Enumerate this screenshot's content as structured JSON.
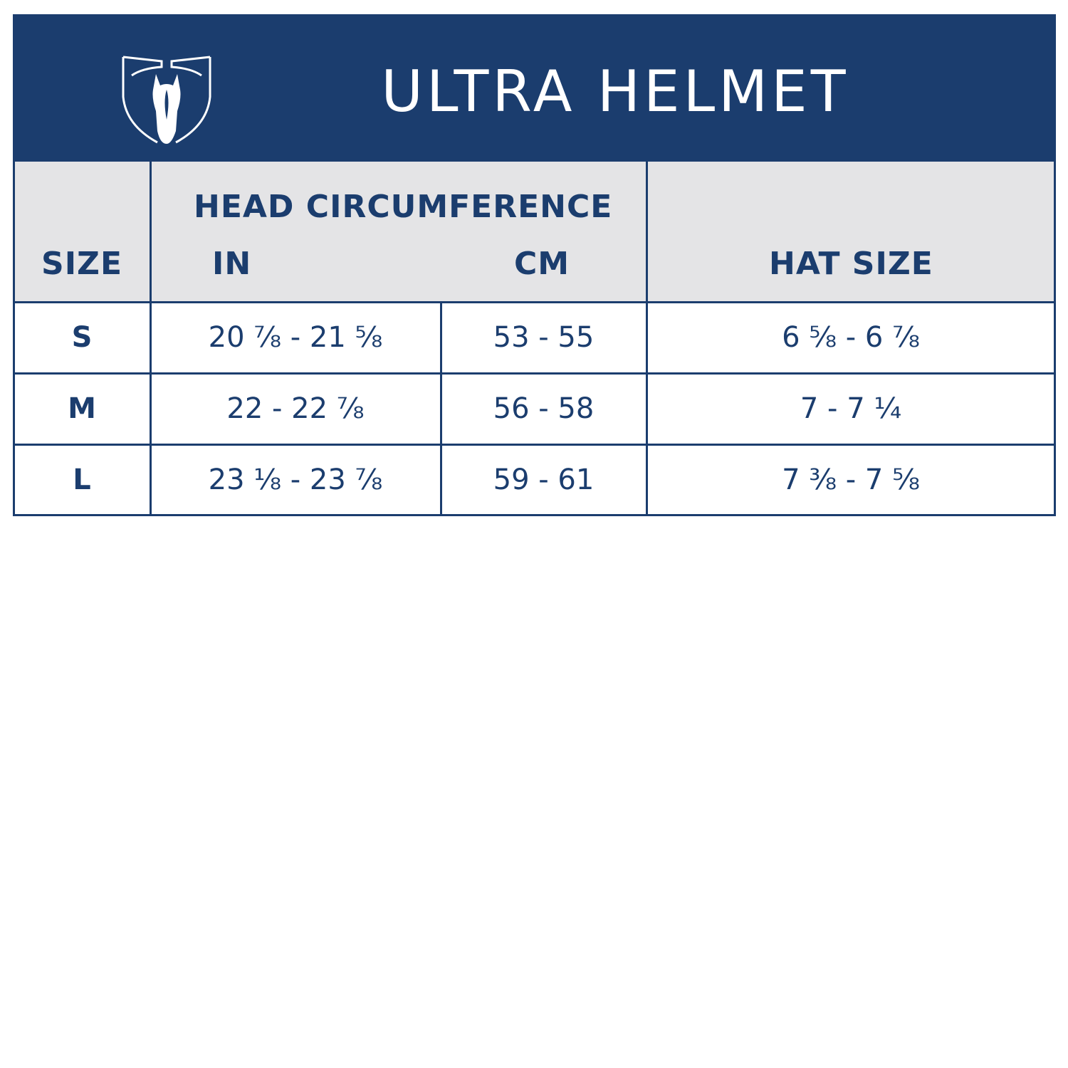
{
  "header": {
    "title": "ULTRA HELMET",
    "logo": "shield-horse-head-logo",
    "brand_color": "#1b3d6e",
    "header_row_bg": "#e4e4e6"
  },
  "columns": {
    "size": "SIZE",
    "head_circumference": "HEAD CIRCUMFERENCE",
    "in": "IN",
    "cm": "CM",
    "hat_size": "HAT SIZE"
  },
  "rows": [
    {
      "size": "S",
      "in": "20 ⅞ - 21 ⅝",
      "cm": "53 - 55",
      "hat": "6 ⅝ - 6 ⅞"
    },
    {
      "size": "M",
      "in": "22 - 22 ⅞",
      "cm": "56 - 58",
      "hat": "7 - 7 ¼"
    },
    {
      "size": "L",
      "in": "23 ⅛ - 23 ⅞",
      "cm": "59 - 61",
      "hat": "7 ⅜ - 7 ⅝"
    }
  ]
}
